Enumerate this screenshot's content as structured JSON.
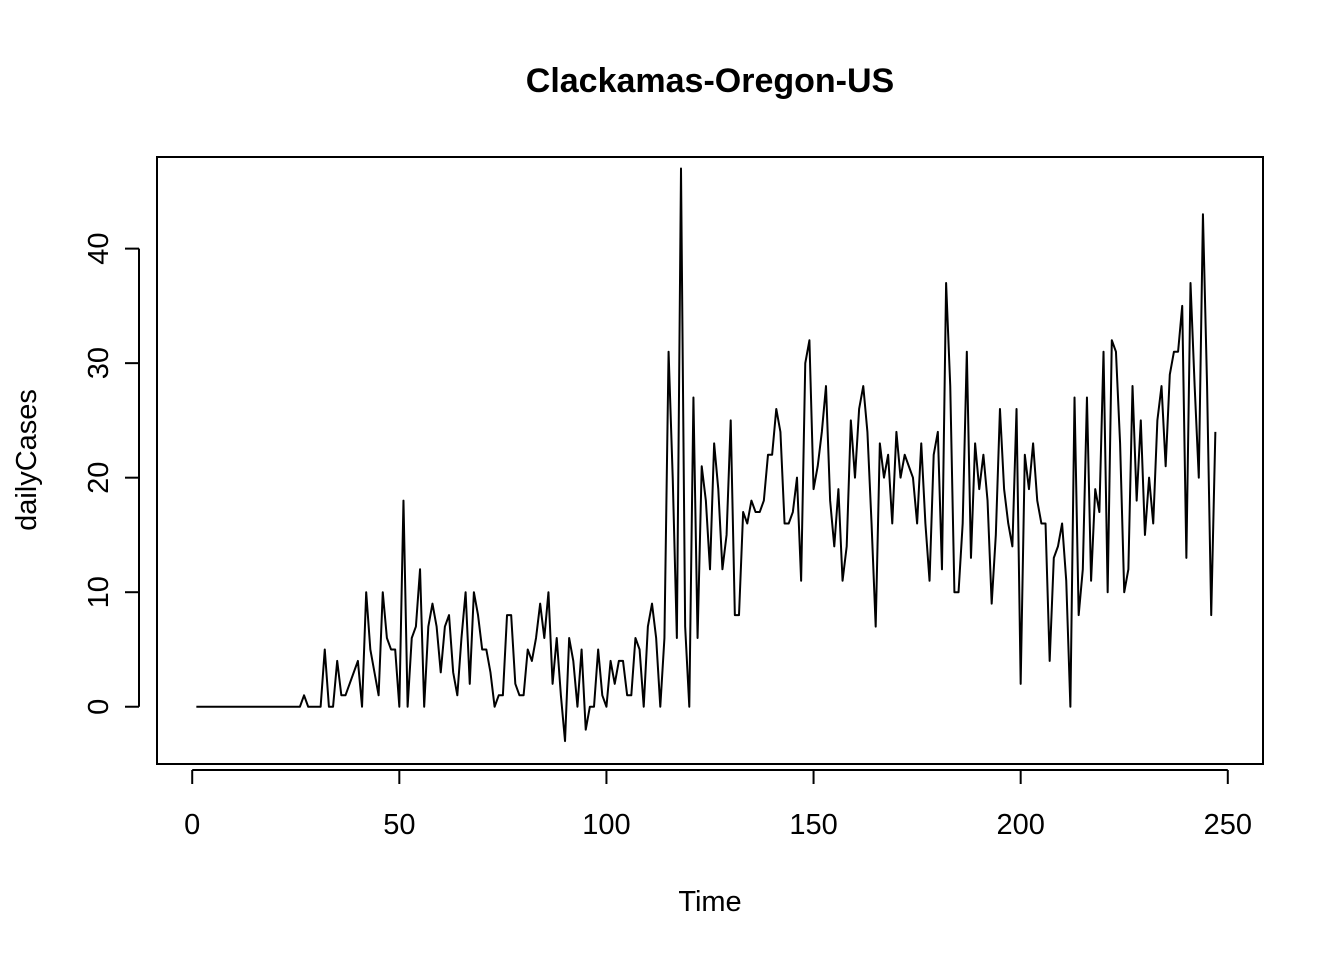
{
  "chart_data": {
    "type": "line",
    "title": "Clackamas-Oregon-US",
    "xlabel": "Time",
    "ylabel": "dailyCases",
    "xlim": [
      -8.5,
      258.5
    ],
    "ylim": [
      -5,
      48
    ],
    "x_ticks": [
      0,
      50,
      100,
      150,
      200,
      250
    ],
    "y_ticks": [
      0,
      10,
      20,
      30,
      40
    ],
    "grid": false,
    "line_color": "#000000",
    "series": [
      {
        "x_start": 1,
        "values": [
          0,
          0,
          0,
          0,
          0,
          0,
          0,
          0,
          0,
          0,
          0,
          0,
          0,
          0,
          0,
          0,
          0,
          0,
          0,
          0,
          0,
          0,
          0,
          0,
          0,
          0,
          1,
          0,
          0,
          0,
          0,
          5,
          0,
          0,
          4,
          1,
          1,
          2,
          3,
          4,
          0,
          10,
          5,
          3,
          1,
          10,
          6,
          5,
          5,
          0,
          18,
          0,
          6,
          7,
          12,
          0,
          7,
          9,
          7,
          3,
          7,
          8,
          3,
          1,
          6,
          10,
          2,
          10,
          8,
          5,
          5,
          3,
          0,
          1,
          1,
          8,
          8,
          2,
          1,
          1,
          5,
          4,
          6,
          9,
          6,
          10,
          2,
          6,
          1,
          -3,
          6,
          4,
          0,
          5,
          -2,
          0,
          0,
          5,
          1,
          0,
          4,
          2,
          4,
          4,
          1,
          1,
          6,
          5,
          0,
          7,
          9,
          6,
          0,
          6,
          31,
          20,
          6,
          47,
          7,
          0,
          27,
          6,
          21,
          18,
          12,
          23,
          19,
          12,
          15,
          25,
          8,
          8,
          17,
          16,
          18,
          17,
          17,
          18,
          22,
          22,
          26,
          24,
          16,
          16,
          17,
          20,
          11,
          30,
          32,
          19,
          21,
          24,
          28,
          18,
          14,
          19,
          11,
          14,
          25,
          20,
          26,
          28,
          24,
          16,
          7,
          23,
          20,
          22,
          16,
          24,
          20,
          22,
          21,
          20,
          16,
          23,
          16,
          11,
          22,
          24,
          12,
          37,
          28,
          10,
          10,
          16,
          31,
          13,
          23,
          19,
          22,
          18,
          9,
          15,
          26,
          19,
          16,
          14,
          26,
          2,
          22,
          19,
          23,
          18,
          16,
          16,
          4,
          13,
          14,
          16,
          11,
          0,
          27,
          8,
          12,
          27,
          11,
          19,
          17,
          31,
          10,
          32,
          31,
          23,
          10,
          12,
          28,
          18,
          25,
          15,
          20,
          16,
          25,
          28,
          21,
          29,
          31,
          31,
          35,
          13,
          37,
          28,
          20,
          43,
          28,
          8,
          24
        ]
      }
    ]
  }
}
